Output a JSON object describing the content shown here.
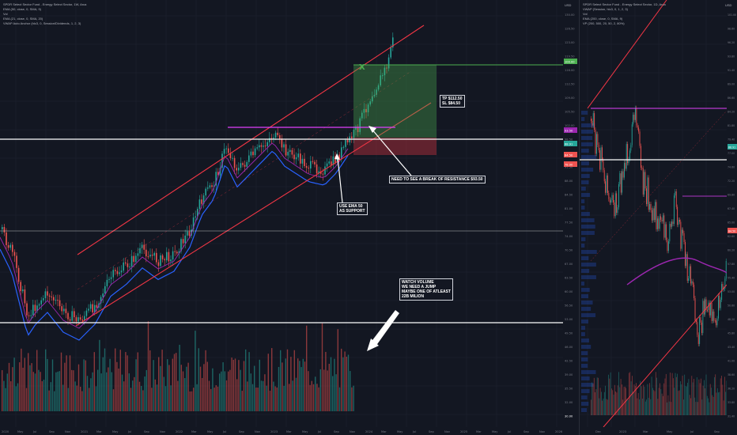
{
  "colors": {
    "background": "#131722",
    "grid": "#1e2230",
    "candle_up": "#26a69a",
    "candle_down": "#ef5350",
    "ema_line": "#2962ff",
    "vwap_line": "#9c27b0",
    "channel": "#f23645",
    "resistance": "#e040fb",
    "white_levels": "#ffffff",
    "tp_line": "#4caf50",
    "profit_zone": "rgba(76,175,80,0.35)",
    "loss_zone": "rgba(242,54,69,0.35)"
  },
  "left_pane": {
    "legend": [
      "SPDR Select Sector Fund - Energy Select Sector, 1W, Arca",
      "EMA (50, close, 0, SMA, 9)",
      "Vol",
      "EMA (21, close, 0, SMA, 20)",
      "VWAP Auto Anchor (hlc3, 0, Session/Dividends, 1, 2, 3)"
    ],
    "currency": "USD",
    "annotations": {
      "trade_box": "TP $112.50\nSL $84.50",
      "break_note": "NEED TO SEE A BREAK OF RESISTANCE $93.50",
      "ema_note": "USE EMA 50\nAS SUPPORT",
      "volume_note": "WATCH VOLUME\nWE NEED A JUMP\nMAYBE ONE OF ATLEAST\n22B MILION"
    },
    "entry_marker": "X",
    "time_labels": [
      "2020",
      "May",
      "Jul",
      "Sep",
      "Nov",
      "2021",
      "Mar",
      "May",
      "Jul",
      "Sep",
      "Nov",
      "2022",
      "Mar",
      "May",
      "Jul",
      "Sep",
      "Nov",
      "2023",
      "Mar",
      "May",
      "Jul",
      "Sep",
      "Nov",
      "2024",
      "Mar",
      "May",
      "Jul",
      "Sep",
      "Nov",
      "2025",
      "Mar",
      "May",
      "Jul",
      "Sep",
      "Nov",
      "2026"
    ],
    "price_tags": [
      {
        "text": "100.00",
        "color": "#4caf50"
      },
      {
        "text": "93.50",
        "color": "#9c27b0"
      },
      {
        "text": "88.91",
        "color": "#26a69a"
      },
      {
        "text": "84.50",
        "color": "#ef5350"
      },
      {
        "text": "78.00",
        "color": "#ef5350"
      },
      {
        "text": "30.00",
        "color": "#131722"
      }
    ]
  },
  "right_pane": {
    "legend": [
      "SPDR Select Sector Fund - Energy Select Sector, 1D, Arca",
      "VWAP (Session, hlc3, 0, 1, 2, 3)",
      "Vol",
      "EMA (200, close, 0, SMA, 9)",
      "VP (200, 500, 20, 50, 2, 80%)"
    ],
    "currency": "USD",
    "time_labels": [
      "Dec",
      "2023",
      "Mar",
      "May",
      "Jul",
      "Sep"
    ],
    "price_tags": [
      {
        "text": "88.91",
        "color": "#26a69a"
      },
      {
        "text": "84.50",
        "color": "#ef5350"
      }
    ]
  },
  "chart_data": {
    "type": "line",
    "title": "SPDR Select Sector Fund - Energy Select Sector, 1W, Arca",
    "x": [
      "2020",
      "Jul",
      "2021",
      "Jul",
      "2022",
      "Jul",
      "2023",
      "Jul",
      "2024"
    ],
    "series": [
      {
        "name": "EMA (50)",
        "values": [
          58,
          52,
          45,
          48,
          58,
          70,
          80,
          83,
          87
        ]
      }
    ],
    "levels": {
      "take_profit": 112.5,
      "resistance": 93.5,
      "stop_loss": 84.5
    },
    "ylim": [
      30,
      130
    ]
  }
}
